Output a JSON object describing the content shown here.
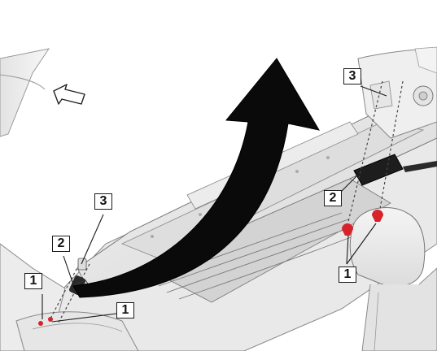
{
  "callouts": {
    "c1_left": "1",
    "c2_left": "2",
    "c3_left": "3",
    "c1_left_lower": "1",
    "c3_right": "3",
    "c2_right": "2",
    "c1_right": "1"
  },
  "colors": {
    "arrow": "#0a0a0a",
    "clip_red": "#d8222a",
    "line_art": "#555555",
    "shade_light": "#efefef",
    "shade_mid": "#d9d9d9",
    "shade_dark": "#c4c4c4"
  },
  "icons": {
    "direction_arrow": "removal-direction-arrow-icon",
    "forward_arrow": "vehicle-forward-arrow-icon",
    "clip": "retaining-clip-icon"
  }
}
